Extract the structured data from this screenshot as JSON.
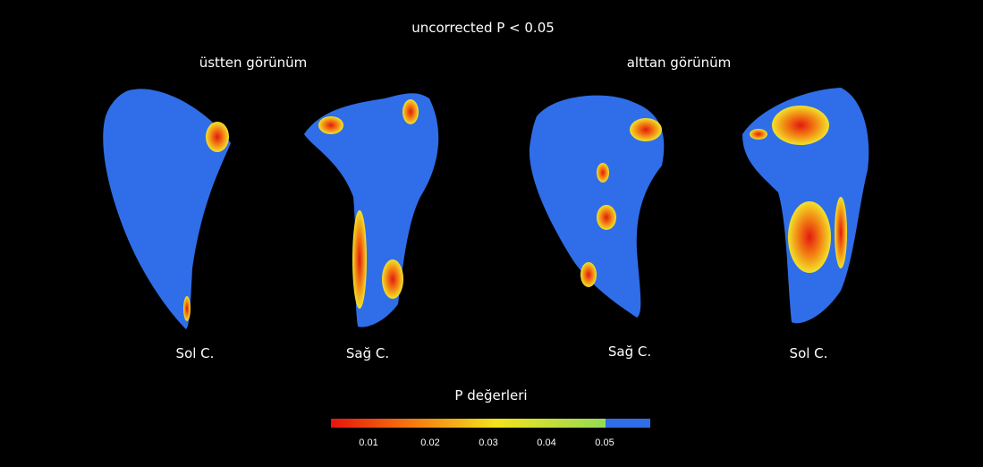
{
  "title": "uncorrected P < 0.05",
  "groups": [
    {
      "label": "üstten görünüm"
    },
    {
      "label": "alttan görünüm"
    }
  ],
  "shapes": [
    {
      "label": "Sol C."
    },
    {
      "label": "Sağ C."
    },
    {
      "label": "Sağ C."
    },
    {
      "label": "Sol C."
    }
  ],
  "colorbar": {
    "title": "P değerleri",
    "ticks": [
      "0.01",
      "0.02",
      "0.03",
      "0.04",
      "0.05"
    ]
  }
}
